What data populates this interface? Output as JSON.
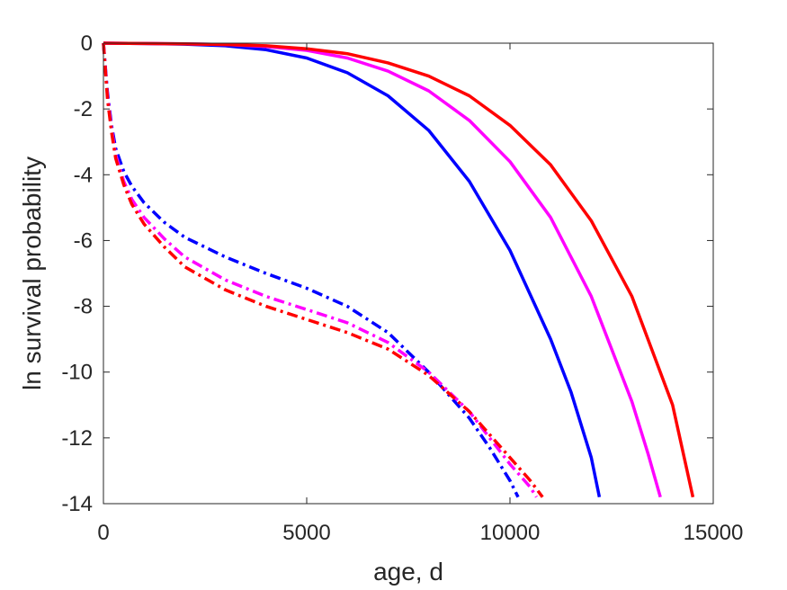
{
  "chart_data": {
    "type": "line",
    "title": "",
    "xlabel": "age, d",
    "ylabel": "ln survival probability",
    "xlim": [
      0,
      15000
    ],
    "ylim": [
      -14,
      0
    ],
    "xticks": [
      0,
      5000,
      10000,
      15000
    ],
    "yticks": [
      0,
      -2,
      -4,
      -6,
      -8,
      -10,
      -12,
      -14
    ],
    "xtick_labels": [
      "0",
      "5000",
      "10000",
      "15000"
    ],
    "ytick_labels": [
      "0",
      "-2",
      "-4",
      "-6",
      "-8",
      "-10",
      "-12",
      "-14"
    ],
    "grid": false,
    "legend": "none",
    "series": [
      {
        "color": "#0000ff",
        "style": "solid",
        "points": [
          [
            0,
            0
          ],
          [
            1000,
            -0.01
          ],
          [
            2000,
            -0.03
          ],
          [
            3000,
            -0.08
          ],
          [
            4000,
            -0.2
          ],
          [
            5000,
            -0.45
          ],
          [
            6000,
            -0.9
          ],
          [
            7000,
            -1.6
          ],
          [
            8000,
            -2.65
          ],
          [
            9000,
            -4.2
          ],
          [
            10000,
            -6.3
          ],
          [
            11000,
            -9.0
          ],
          [
            11500,
            -10.6
          ],
          [
            12000,
            -12.6
          ],
          [
            12200,
            -13.8
          ]
        ]
      },
      {
        "color": "#ff00ff",
        "style": "solid",
        "points": [
          [
            0,
            0
          ],
          [
            1000,
            -0.01
          ],
          [
            2000,
            -0.02
          ],
          [
            3000,
            -0.04
          ],
          [
            4000,
            -0.1
          ],
          [
            5000,
            -0.22
          ],
          [
            6000,
            -0.45
          ],
          [
            7000,
            -0.85
          ],
          [
            8000,
            -1.45
          ],
          [
            9000,
            -2.35
          ],
          [
            10000,
            -3.6
          ],
          [
            11000,
            -5.3
          ],
          [
            12000,
            -7.7
          ],
          [
            13000,
            -10.9
          ],
          [
            13400,
            -12.5
          ],
          [
            13700,
            -13.8
          ]
        ]
      },
      {
        "color": "#ff0000",
        "style": "solid",
        "points": [
          [
            0,
            0
          ],
          [
            1000,
            -0.01
          ],
          [
            2000,
            -0.02
          ],
          [
            3000,
            -0.04
          ],
          [
            4000,
            -0.08
          ],
          [
            5000,
            -0.17
          ],
          [
            6000,
            -0.32
          ],
          [
            7000,
            -0.6
          ],
          [
            8000,
            -1.0
          ],
          [
            9000,
            -1.6
          ],
          [
            10000,
            -2.5
          ],
          [
            11000,
            -3.7
          ],
          [
            12000,
            -5.4
          ],
          [
            13000,
            -7.7
          ],
          [
            14000,
            -11.0
          ],
          [
            14500,
            -13.8
          ]
        ]
      },
      {
        "color": "#0000ff",
        "style": "dashdot",
        "points": [
          [
            0,
            0
          ],
          [
            100,
            -1.5
          ],
          [
            200,
            -2.5
          ],
          [
            300,
            -3.2
          ],
          [
            500,
            -3.9
          ],
          [
            700,
            -4.35
          ],
          [
            1000,
            -4.85
          ],
          [
            1500,
            -5.45
          ],
          [
            2000,
            -5.9
          ],
          [
            3000,
            -6.5
          ],
          [
            4000,
            -7.0
          ],
          [
            5000,
            -7.45
          ],
          [
            6000,
            -8.0
          ],
          [
            7000,
            -8.8
          ],
          [
            8000,
            -10.0
          ],
          [
            9000,
            -11.4
          ],
          [
            9500,
            -12.3
          ],
          [
            10000,
            -13.3
          ],
          [
            10200,
            -13.8
          ]
        ]
      },
      {
        "color": "#ff00ff",
        "style": "dashdot",
        "points": [
          [
            0,
            0
          ],
          [
            100,
            -1.6
          ],
          [
            200,
            -2.6
          ],
          [
            300,
            -3.4
          ],
          [
            500,
            -4.2
          ],
          [
            700,
            -4.75
          ],
          [
            1000,
            -5.3
          ],
          [
            1500,
            -5.95
          ],
          [
            2000,
            -6.5
          ],
          [
            3000,
            -7.2
          ],
          [
            4000,
            -7.7
          ],
          [
            5000,
            -8.1
          ],
          [
            6000,
            -8.5
          ],
          [
            7000,
            -9.1
          ],
          [
            8000,
            -10.0
          ],
          [
            9000,
            -11.2
          ],
          [
            9500,
            -12.0
          ],
          [
            10000,
            -12.8
          ],
          [
            10500,
            -13.5
          ],
          [
            10650,
            -13.8
          ]
        ]
      },
      {
        "color": "#ff0000",
        "style": "dashdot",
        "points": [
          [
            0,
            0
          ],
          [
            100,
            -1.7
          ],
          [
            200,
            -2.7
          ],
          [
            300,
            -3.5
          ],
          [
            500,
            -4.3
          ],
          [
            700,
            -4.9
          ],
          [
            1000,
            -5.5
          ],
          [
            1500,
            -6.2
          ],
          [
            2000,
            -6.8
          ],
          [
            3000,
            -7.5
          ],
          [
            4000,
            -8.0
          ],
          [
            5000,
            -8.4
          ],
          [
            6000,
            -8.8
          ],
          [
            7000,
            -9.3
          ],
          [
            8000,
            -10.1
          ],
          [
            9000,
            -11.2
          ],
          [
            9500,
            -11.9
          ],
          [
            10000,
            -12.6
          ],
          [
            10500,
            -13.3
          ],
          [
            10800,
            -13.8
          ]
        ]
      }
    ]
  }
}
